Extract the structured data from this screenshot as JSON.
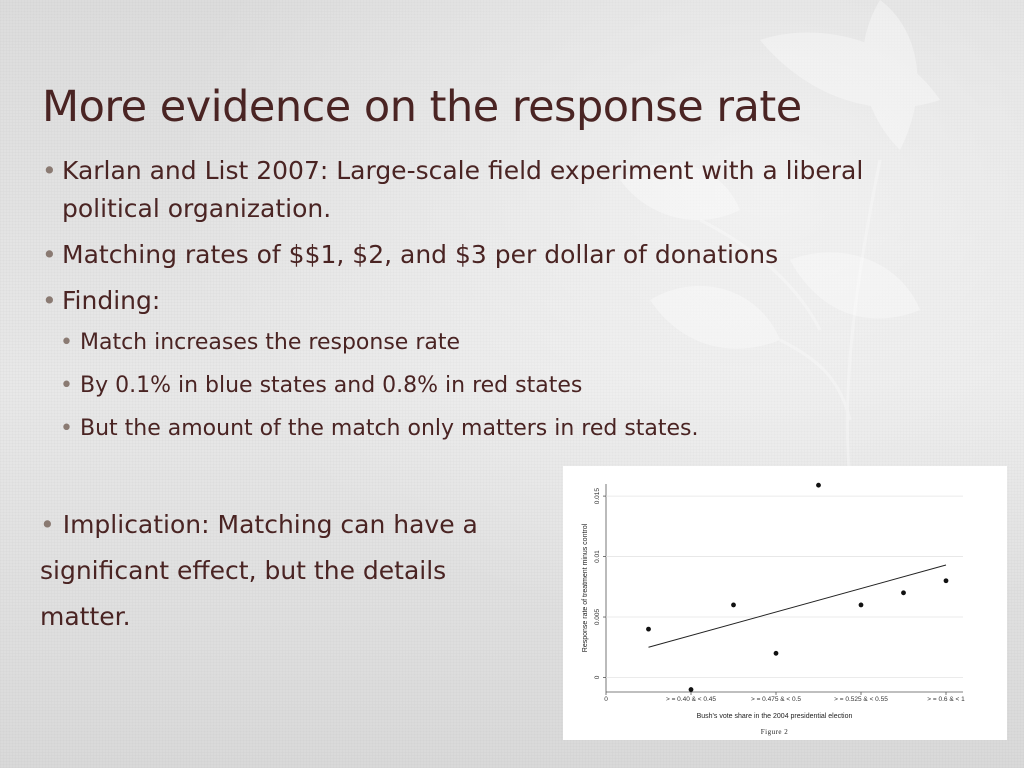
{
  "slide": {
    "title": "More evidence on the response rate",
    "bullets": [
      {
        "text": "Karlan and List 2007: Large-scale field experiment with a liberal political organization."
      },
      {
        "text": "Matching rates of $$1, $2, and $3 per dollar of donations"
      },
      {
        "text": "Finding:",
        "subbullets": [
          "Match increases the response rate",
          "By 0.1% in blue states and 0.8% in red states",
          "But the amount of the match only matters in red states."
        ]
      }
    ],
    "implication": {
      "line1": "Implication: Matching can have a",
      "line2": "significant effect, but the details",
      "line3": "matter."
    },
    "bullet_glyph": "•",
    "colors": {
      "text": "#4a2423",
      "background": "#e6e6e6"
    }
  },
  "chart_data": {
    "type": "scatter",
    "title": "",
    "xlabel": "Bush's vote share in the 2004 presidential election",
    "ylabel": "Response rate of treatment minus control",
    "caption": "Figure 2",
    "x_tick_labels": [
      "0",
      "> = 0.40 & < 0.45",
      "> = 0.475 & < 0.5",
      "> = 0.525 & < 0.55",
      "> = 0.6 & < 1"
    ],
    "x_tick_positions": [
      0,
      2,
      4,
      6,
      8
    ],
    "y_tick_labels": [
      "0",
      "0.005",
      "0.01",
      "0.015"
    ],
    "y_tick_values": [
      0,
      0.005,
      0.01,
      0.015
    ],
    "xlim": [
      0,
      8.4
    ],
    "ylim": [
      -0.0012,
      0.016
    ],
    "grid": true,
    "points": [
      {
        "x": 1,
        "y": 0.004
      },
      {
        "x": 2,
        "y": -0.001
      },
      {
        "x": 3,
        "y": 0.006
      },
      {
        "x": 4,
        "y": 0.002
      },
      {
        "x": 5,
        "y": 0.0159
      },
      {
        "x": 6,
        "y": 0.006
      },
      {
        "x": 7,
        "y": 0.007
      },
      {
        "x": 8,
        "y": 0.008
      }
    ],
    "fit_line": {
      "x": [
        1,
        8
      ],
      "y": [
        0.0025,
        0.0093
      ]
    }
  }
}
